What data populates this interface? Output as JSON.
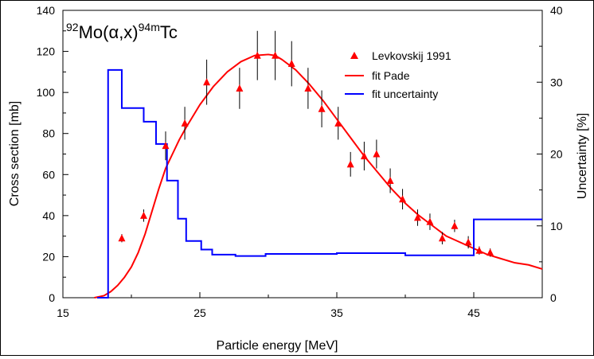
{
  "chart_data": {
    "type": "scatter",
    "title_parts": {
      "sup1": "92",
      "base1": "Mo(",
      "greek": "α",
      "mid": ",x)",
      "sup2": "94m",
      "base2": "Tc"
    },
    "xlabel": "Particle  energy [MeV]",
    "ylabel_left": "Cross section [mb]",
    "ylabel_right": "Uncertainty [%]",
    "xlim": [
      15,
      50
    ],
    "ylim_left": [
      0,
      140
    ],
    "ylim_right": [
      0,
      40
    ],
    "x_ticks": [
      15,
      25,
      35,
      45
    ],
    "x_tick_labels": [
      "15",
      "25",
      "35",
      "45"
    ],
    "y_left_ticks": [
      0,
      20,
      40,
      60,
      80,
      100,
      120,
      140
    ],
    "y_left_tick_labels": [
      "0",
      "20",
      "40",
      "60",
      "80",
      "100",
      "120",
      "140"
    ],
    "y_right_ticks": [
      0,
      10,
      20,
      30,
      40
    ],
    "y_right_tick_labels": [
      "0",
      "10",
      "20",
      "30",
      "40"
    ],
    "legend_position": "top-right",
    "colors": {
      "experimental": "#ff0000",
      "fit": "#ff0000",
      "uncertainty": "#0000ff",
      "axes": "#000000"
    },
    "series": [
      {
        "name": "Levkovskij 1991",
        "kind": "points_with_errorbars",
        "axis": "left",
        "points": [
          {
            "x": 19.3,
            "y": 29,
            "err": 2
          },
          {
            "x": 20.9,
            "y": 40,
            "err": 3
          },
          {
            "x": 22.5,
            "y": 74,
            "err": 7
          },
          {
            "x": 23.9,
            "y": 85,
            "err": 8
          },
          {
            "x": 25.5,
            "y": 105,
            "err": 11
          },
          {
            "x": 27.9,
            "y": 102,
            "err": 10
          },
          {
            "x": 29.2,
            "y": 118,
            "err": 12
          },
          {
            "x": 30.5,
            "y": 118,
            "err": 12
          },
          {
            "x": 31.7,
            "y": 114,
            "err": 11
          },
          {
            "x": 32.9,
            "y": 102,
            "err": 10
          },
          {
            "x": 33.9,
            "y": 92,
            "err": 9
          },
          {
            "x": 35.1,
            "y": 85,
            "err": 8
          },
          {
            "x": 36.0,
            "y": 65,
            "err": 6
          },
          {
            "x": 37.0,
            "y": 69,
            "err": 7
          },
          {
            "x": 37.9,
            "y": 70,
            "err": 7
          },
          {
            "x": 38.9,
            "y": 57,
            "err": 6
          },
          {
            "x": 39.8,
            "y": 48,
            "err": 5
          },
          {
            "x": 40.9,
            "y": 39,
            "err": 4
          },
          {
            "x": 41.8,
            "y": 37,
            "err": 4
          },
          {
            "x": 42.7,
            "y": 29,
            "err": 3
          },
          {
            "x": 43.6,
            "y": 35,
            "err": 3
          },
          {
            "x": 44.6,
            "y": 27,
            "err": 3
          },
          {
            "x": 45.4,
            "y": 23,
            "err": 2
          },
          {
            "x": 46.2,
            "y": 22,
            "err": 2
          }
        ]
      },
      {
        "name": "fit Pade",
        "kind": "line",
        "axis": "left",
        "x": [
          17.3,
          18.0,
          18.5,
          19.0,
          19.5,
          20.0,
          20.5,
          21.0,
          21.5,
          22.0,
          22.5,
          23.0,
          23.5,
          24.0,
          25.0,
          26.0,
          27.0,
          28.0,
          29.0,
          30.0,
          30.5,
          31.0,
          32.0,
          33.0,
          34.0,
          35.0,
          36.0,
          37.0,
          38.0,
          39.0,
          40.0,
          41.0,
          42.0,
          43.0,
          44.0,
          45.0,
          46.0,
          47.0,
          48.0,
          49.0,
          50.0
        ],
        "y": [
          0,
          1,
          3,
          6,
          10,
          15,
          22,
          31,
          42,
          53,
          63,
          70,
          77,
          83,
          94,
          103,
          110,
          115,
          118,
          118.5,
          118,
          116,
          111,
          104,
          96,
          87,
          78,
          69,
          61,
          53,
          46,
          40,
          35,
          30,
          27,
          24,
          21,
          19,
          17,
          16,
          14
        ]
      },
      {
        "name": "fit uncertainty",
        "kind": "step",
        "axis": "right",
        "x": [
          17.5,
          18.3,
          18.3,
          19.3,
          19.3,
          20.9,
          20.9,
          21.8,
          21.8,
          22.6,
          22.6,
          23.4,
          23.4,
          24.0,
          24.0,
          25.1,
          25.1,
          25.9,
          25.9,
          27.6,
          27.6,
          29.8,
          29.8,
          31.8,
          31.8,
          35.0,
          35.0,
          37.5,
          37.5,
          40.0,
          40.0,
          45.0,
          45.0,
          50.0
        ],
        "y": [
          0,
          0,
          31.7,
          31.7,
          26.4,
          26.4,
          24.5,
          24.5,
          21.4,
          21.4,
          16.3,
          16.3,
          11.0,
          11.0,
          7.9,
          7.9,
          6.7,
          6.7,
          6.0,
          6.0,
          5.8,
          5.8,
          6.1,
          6.1,
          6.1,
          6.1,
          6.2,
          6.2,
          6.2,
          6.2,
          5.9,
          5.9,
          10.9,
          10.9
        ]
      }
    ]
  }
}
